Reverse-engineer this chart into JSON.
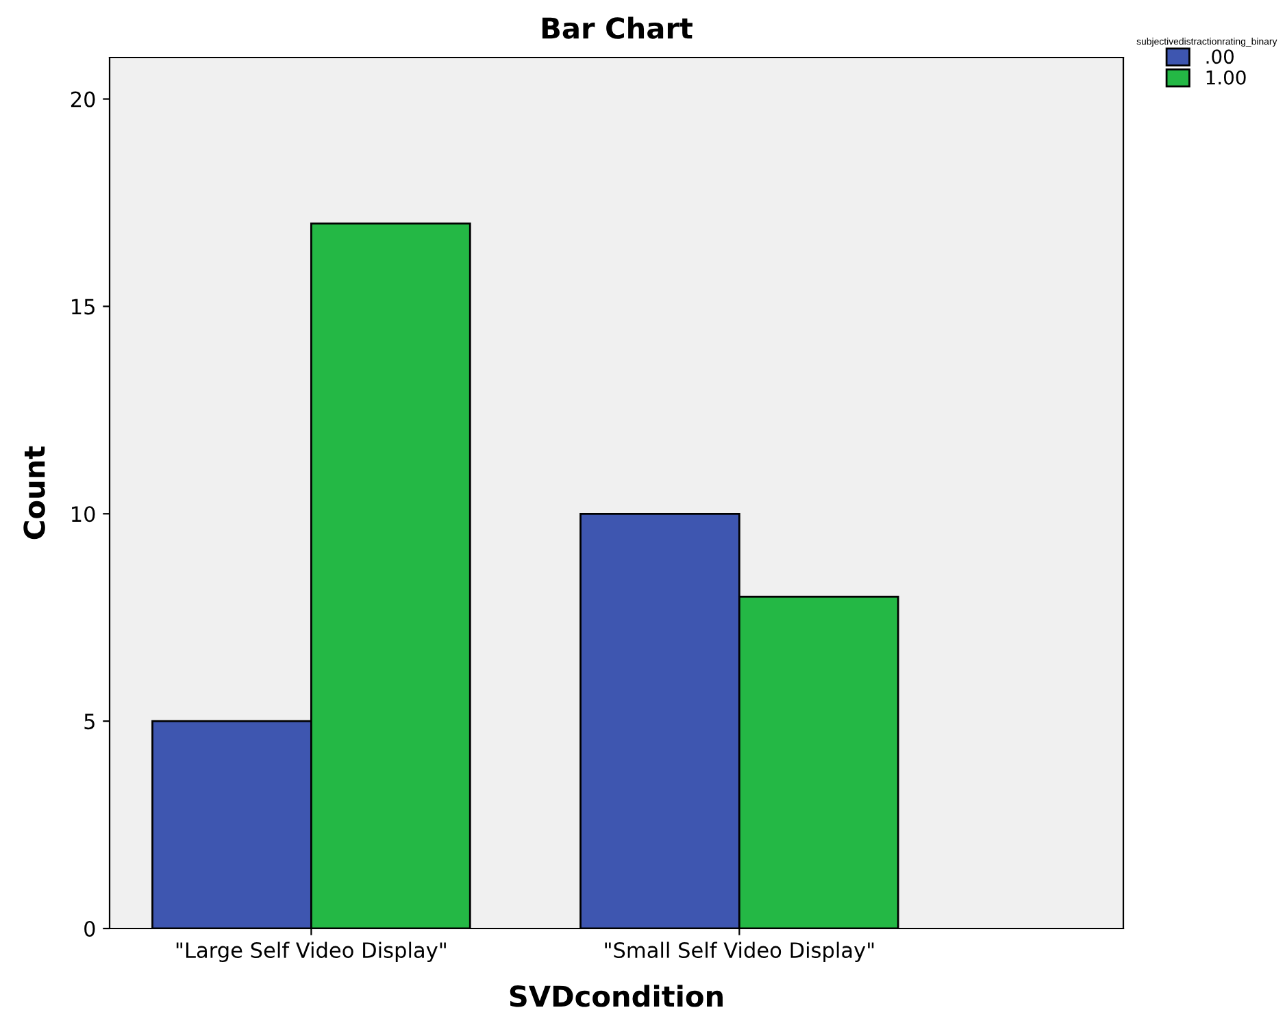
{
  "chart_data": {
    "type": "bar",
    "title": "Bar Chart",
    "xlabel": "SVDcondition",
    "ylabel": "Count",
    "legend_title": "subjectivedistractionrating_binary",
    "categories": [
      "\"Large Self Video Display\"",
      "\"Small Self Video Display\""
    ],
    "series": [
      {
        "name": ".00",
        "color": "#3e56b0",
        "values": [
          5,
          10
        ]
      },
      {
        "name": "1.00",
        "color": "#24b845",
        "values": [
          17,
          8
        ]
      }
    ],
    "ylim": [
      0,
      21
    ],
    "yticks": [
      0,
      5,
      10,
      15,
      20
    ],
    "grid": false,
    "legend": "top right"
  }
}
